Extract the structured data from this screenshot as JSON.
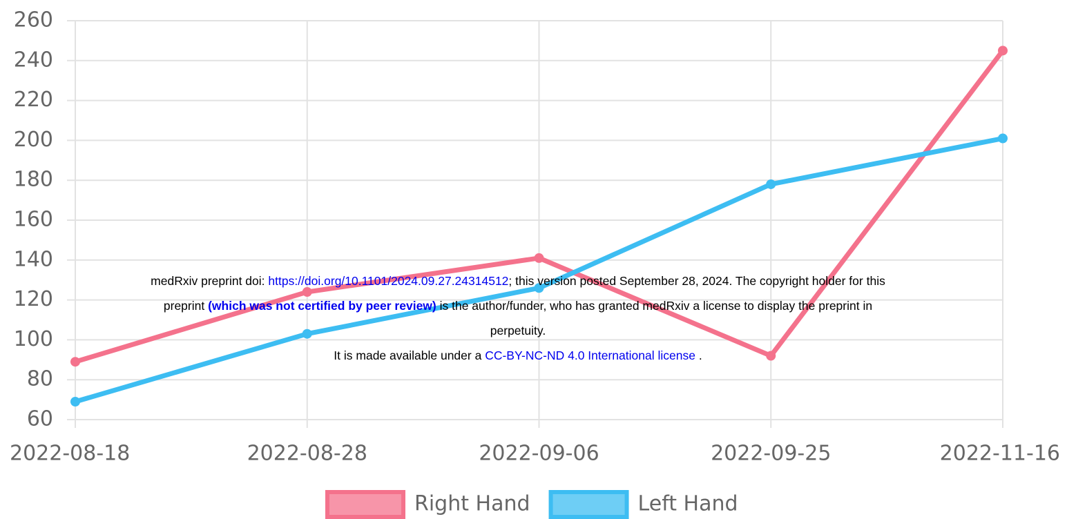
{
  "chart_data": {
    "type": "line",
    "categories": [
      "2022-08-18",
      "2022-08-28",
      "2022-09-06",
      "2022-09-25",
      "2022-11-16"
    ],
    "series": [
      {
        "name": "Right Hand",
        "color": "#f4728c",
        "values": [
          89,
          124,
          141,
          92,
          245
        ]
      },
      {
        "name": "Left Hand",
        "color": "#3dbdf2",
        "values": [
          69,
          103,
          126,
          178,
          201
        ]
      }
    ],
    "ylim": [
      60,
      260
    ],
    "yticks": [
      60,
      80,
      100,
      120,
      140,
      160,
      180,
      200,
      220,
      240,
      260
    ],
    "grid": true,
    "notice": {
      "line1": [
        "medRxiv preprint doi: ",
        "https://doi.org/10.1101/2024.09.27.24314512",
        "; this version posted September 28, 2024. The copyright holder for this"
      ],
      "line2": [
        "preprint ",
        "(which was not certified by peer review)",
        " is the author/funder, who has granted medRxiv a license to display the preprint in"
      ],
      "line3": [
        "perpetuity."
      ],
      "line4": [
        "It is made available under a ",
        "CC-BY-NC-ND 4.0 International license",
        " ."
      ]
    }
  }
}
